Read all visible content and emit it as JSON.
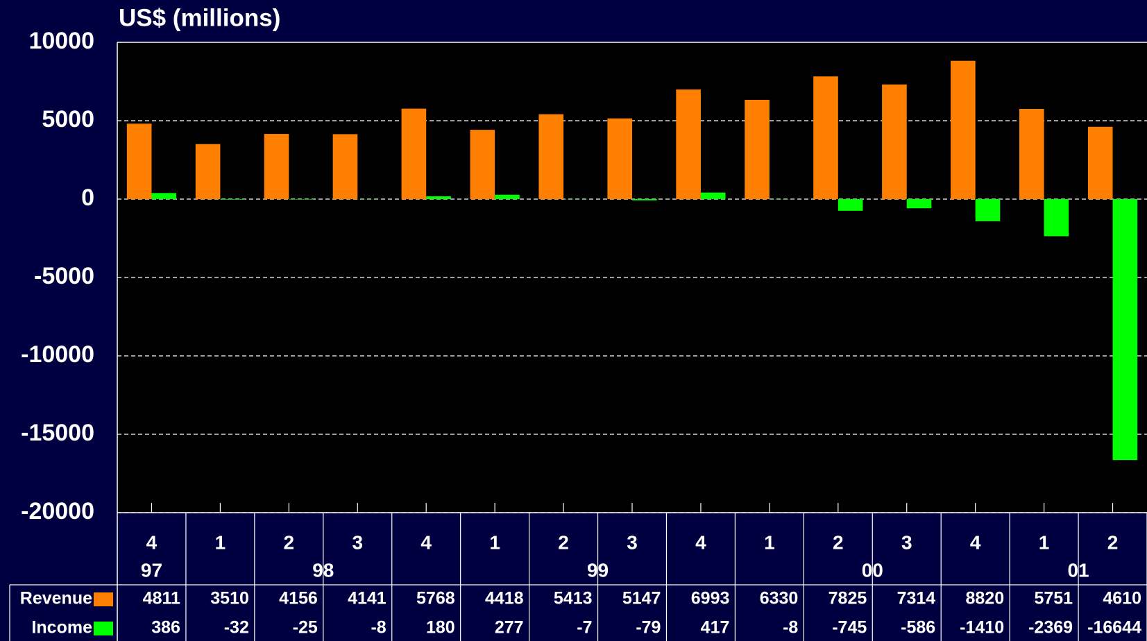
{
  "chart_data": {
    "type": "bar",
    "title": "US$ (millions)",
    "categories": [
      "4",
      "1",
      "2",
      "3",
      "4",
      "1",
      "2",
      "3",
      "4",
      "1",
      "2",
      "3",
      "4",
      "1",
      "2"
    ],
    "category_groups": [
      {
        "label": "97",
        "size": 1
      },
      {
        "label": "98",
        "size": 4
      },
      {
        "label": "99",
        "size": 4
      },
      {
        "label": "00",
        "size": 4
      },
      {
        "label": "01",
        "size": 2
      }
    ],
    "series": [
      {
        "name": "Revenue",
        "color": "#ff8000",
        "values": [
          4811,
          3510,
          4156,
          4141,
          5768,
          4418,
          5413,
          5147,
          6993,
          6330,
          7825,
          7314,
          8820,
          5751,
          4610
        ]
      },
      {
        "name": "Income",
        "color": "#00ff00",
        "values": [
          386,
          -32,
          -25,
          -8,
          180,
          277,
          -7,
          -79,
          417,
          -8,
          -745,
          -586,
          -1410,
          -2369,
          -16644
        ]
      }
    ],
    "ylim": [
      -20000,
      10000
    ],
    "yticks": [
      -20000,
      -15000,
      -10000,
      -5000,
      0,
      5000,
      10000
    ],
    "grid": true
  }
}
